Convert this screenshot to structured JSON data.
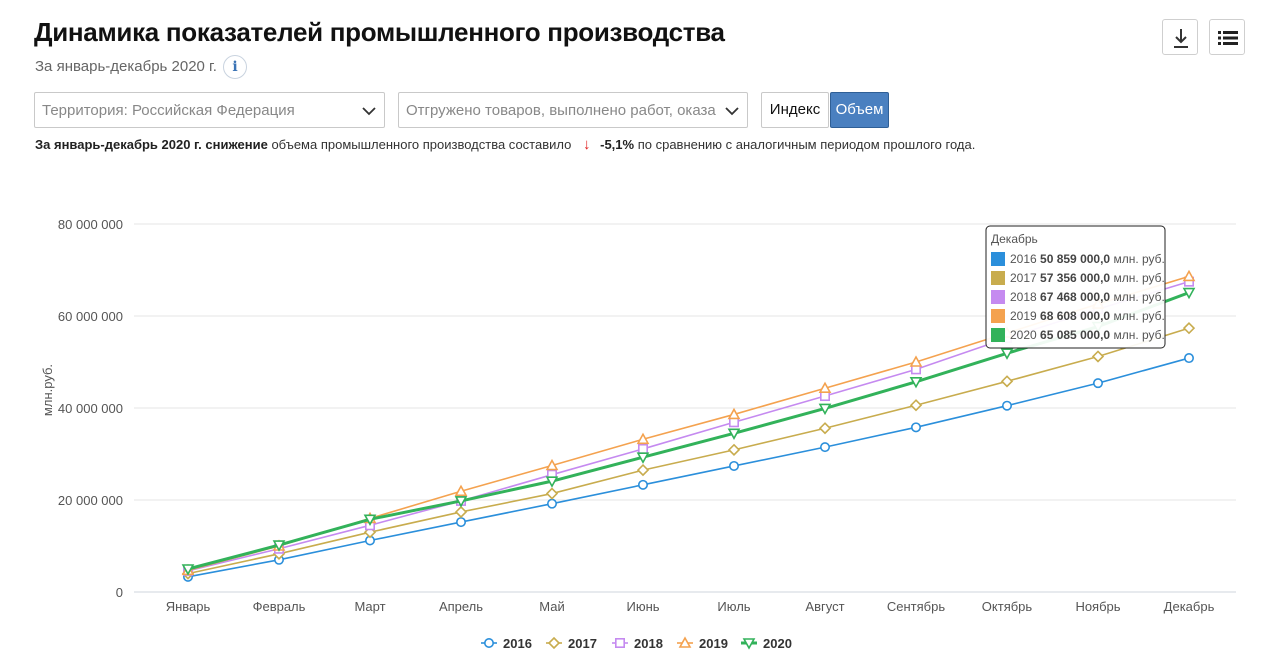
{
  "header": {
    "title": "Динамика показателей промышленного производства",
    "subtitle": "За январь-декабрь 2020 г.",
    "info_label": "i"
  },
  "filters": {
    "territory": "Территория: Российская  Федерация",
    "indicator": "Отгружено товаров, выполнено работ, оказа",
    "toggle_index": "Индекс",
    "toggle_volume": "Объем",
    "active_toggle": "Объем"
  },
  "summary": {
    "bold_prefix": "За январь-декабрь 2020 г. снижение",
    "text": "объема промышленного производства составило",
    "value": "-5,1%",
    "suffix": "по сравнению с аналогичным периодом прошлого года.",
    "arrow": "↓"
  },
  "tooltip": {
    "month": "Декабрь",
    "unit": "млн. руб.",
    "rows": [
      {
        "year": "2016",
        "value": "50 859 000,0",
        "color": "#2b8fdb"
      },
      {
        "year": "2017",
        "value": "57 356 000,0",
        "color": "#c8ac4e"
      },
      {
        "year": "2018",
        "value": "67 468 000,0",
        "color": "#c58af0"
      },
      {
        "year": "2019",
        "value": "68 608 000,0",
        "color": "#f4a24f"
      },
      {
        "year": "2020",
        "value": "65 085 000,0",
        "color": "#32b25a"
      }
    ]
  },
  "chart_data": {
    "type": "line",
    "ylabel": "млн.руб.",
    "ylim": [
      0,
      80000000
    ],
    "yticks": [
      0,
      20000000,
      40000000,
      60000000,
      80000000
    ],
    "ytick_labels": [
      "0",
      "20 000 000",
      "40 000 000",
      "60 000 000",
      "80 000 000"
    ],
    "categories": [
      "Январь",
      "Февраль",
      "Март",
      "Апрель",
      "Май",
      "Июнь",
      "Июль",
      "Август",
      "Сентябрь",
      "Октябрь",
      "Ноябрь",
      "Декабрь"
    ],
    "legend_position": "bottom",
    "series": [
      {
        "name": "2016",
        "color": "#2b8fdb",
        "marker": "circle",
        "values": [
          3300000,
          7000000,
          11200000,
          15200000,
          19200000,
          23300000,
          27400000,
          31500000,
          35800000,
          40500000,
          45400000,
          50859000
        ]
      },
      {
        "name": "2017",
        "color": "#c8ac4e",
        "marker": "diamond",
        "values": [
          4000000,
          8300000,
          13000000,
          17400000,
          21400000,
          26500000,
          30900000,
          35600000,
          40600000,
          45800000,
          51200000,
          57356000
        ]
      },
      {
        "name": "2018",
        "color": "#c58af0",
        "marker": "square",
        "values": [
          4600000,
          9400000,
          14500000,
          19800000,
          25500000,
          31100000,
          36900000,
          42600000,
          48400000,
          55200000,
          61500000,
          67468000
        ]
      },
      {
        "name": "2019",
        "color": "#f4a24f",
        "marker": "triangle",
        "values": [
          4700000,
          10000000,
          16000000,
          21900000,
          27500000,
          33200000,
          38600000,
          44300000,
          50000000,
          56300000,
          62600000,
          68608000
        ]
      },
      {
        "name": "2020",
        "color": "#32b25a",
        "marker": "triangle-down",
        "values": [
          5000000,
          10200000,
          15800000,
          19800000,
          24100000,
          29300000,
          34500000,
          39900000,
          45700000,
          51900000,
          57700000,
          65085000
        ]
      }
    ]
  }
}
